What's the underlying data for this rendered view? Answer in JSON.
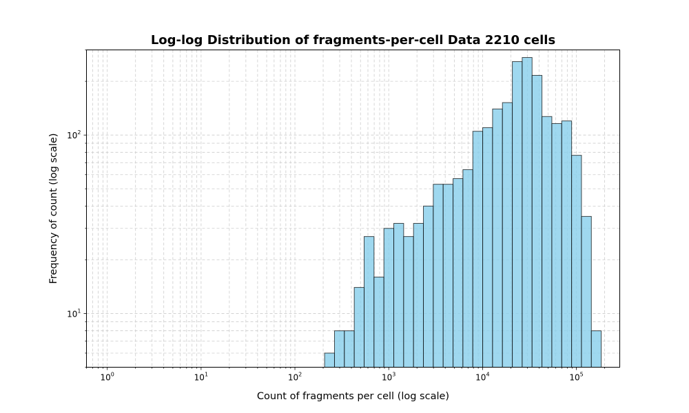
{
  "chart_data": {
    "type": "bar",
    "title": "Log-log Distribution of fragments-per-cell Data 2210 cells",
    "xlabel": "Count of fragments per cell (log scale)",
    "ylabel": "Frequency of count (log scale)",
    "x_scale": "log",
    "y_scale": "log",
    "xlim": [
      0.6,
      290000
    ],
    "ylim": [
      5,
      300
    ],
    "x_ticks": [
      {
        "base": "10",
        "exp": "0",
        "value": 1
      },
      {
        "base": "10",
        "exp": "1",
        "value": 10
      },
      {
        "base": "10",
        "exp": "2",
        "value": 100
      },
      {
        "base": "10",
        "exp": "3",
        "value": 1000
      },
      {
        "base": "10",
        "exp": "4",
        "value": 10000
      },
      {
        "base": "10",
        "exp": "5",
        "value": 100000
      }
    ],
    "y_ticks": [
      {
        "base": "10",
        "exp": "1",
        "value": 10
      },
      {
        "base": "10",
        "exp": "2",
        "value": 100
      }
    ],
    "grid": true,
    "bar_color": "#87CEEB",
    "bar_edge_color": "#000000",
    "bins_log10_start": 0,
    "bins_log10_width": 0.1053,
    "values": [
      5,
      0,
      0,
      0,
      0,
      0,
      0,
      0,
      0,
      0,
      0,
      0,
      0,
      0,
      0,
      0,
      0,
      0,
      0,
      0,
      0,
      0,
      6,
      8,
      8,
      14,
      27,
      16,
      30,
      32,
      27,
      32,
      40,
      53,
      53,
      57,
      64,
      105,
      110,
      140,
      152,
      258,
      272,
      216,
      127,
      116,
      120,
      77,
      35,
      8
    ]
  }
}
